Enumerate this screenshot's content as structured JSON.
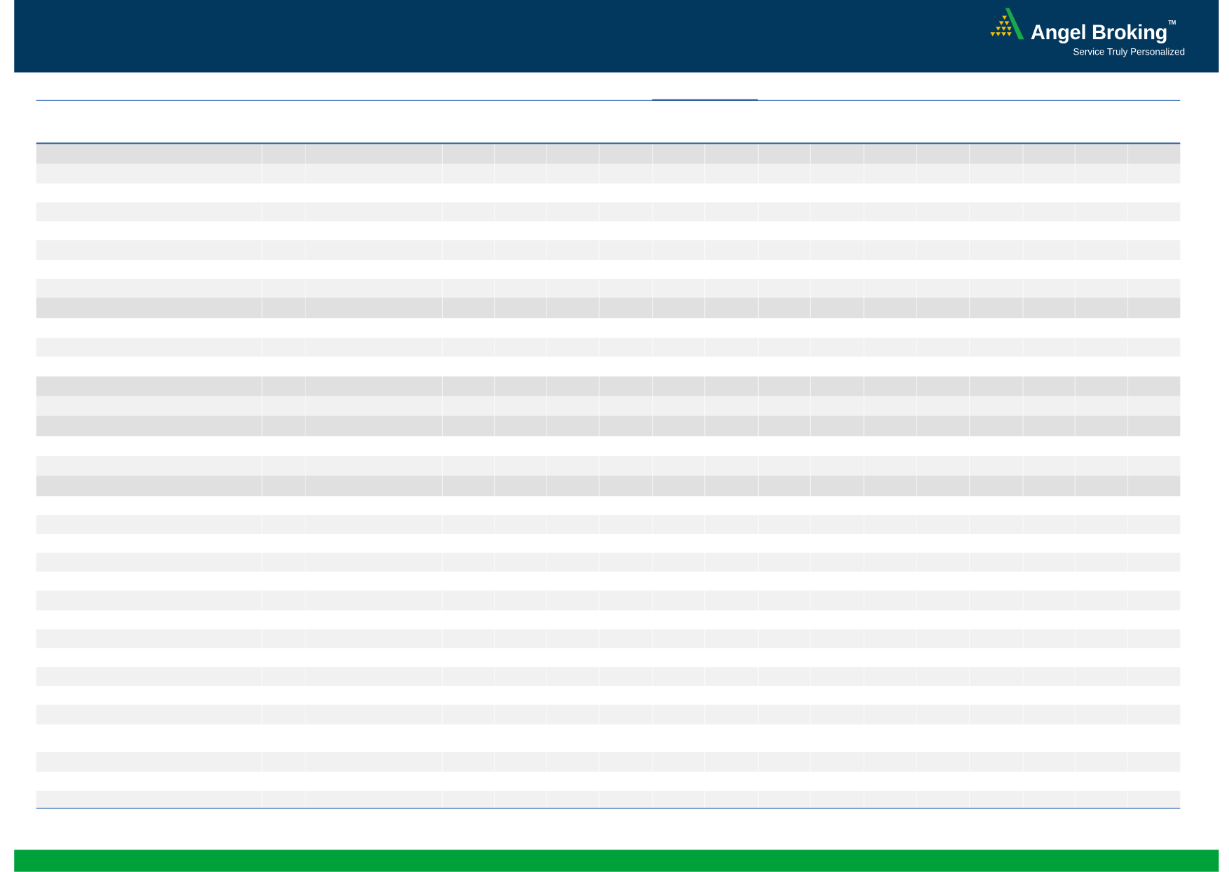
{
  "header": {
    "logo": {
      "brand": "Angel Broking",
      "trademark": "TM",
      "tagline": "Service Truly Personalized",
      "icon": "angel-pyramid-logo-icon"
    }
  },
  "colors": {
    "header_bg": "#02375e",
    "footer_bg": "#00a13a",
    "rule": "#2f5f9a",
    "row_dark": "#e0e0e0",
    "row_light": "#f1f1f1",
    "row_white": "#ffffff",
    "logo_green": "#1aa84a",
    "logo_gold": "#f2c300"
  }
}
